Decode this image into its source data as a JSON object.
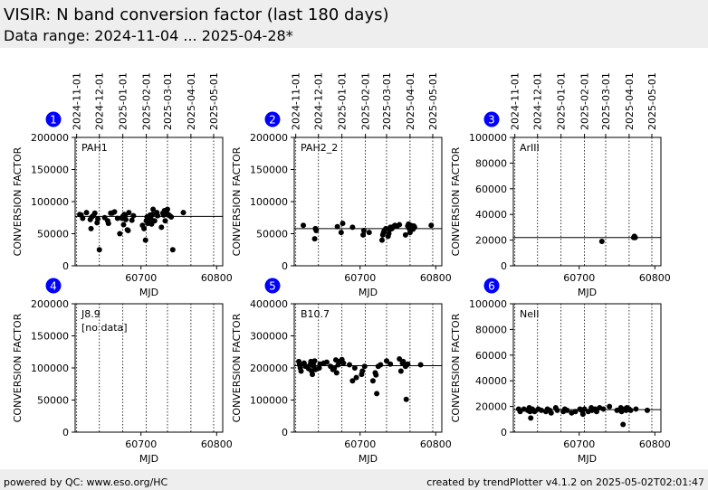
{
  "header": {
    "title": "VISIR: N band conversion factor (last 180 days)",
    "subtitle": "Data range: 2024-11-04 ... 2025-04-28*"
  },
  "footer": {
    "left": "powered by QC: www.eso.org/HC",
    "right": "created by trendPlotter v4.1.2 on 2025-05-02T02:01:47"
  },
  "colors": {
    "marker": "#0000ff",
    "points": "#000000"
  },
  "chart_data": [
    {
      "type": "scatter",
      "panel": "1",
      "label": "PAH1",
      "xlabel": "MJD",
      "ylabel": "CONVERSION FACTOR",
      "xlim": [
        60613,
        60808
      ],
      "ylim": [
        0,
        200000
      ],
      "xticks": [
        60700,
        60800
      ],
      "yticks": [
        0,
        50000,
        100000,
        150000,
        200000
      ],
      "date_ticks": [
        "2024-11-01",
        "2024-12-01",
        "2025-01-01",
        "2025-02-01",
        "2025-03-01",
        "2025-04-01",
        "2025-05-01"
      ],
      "date_mjd": [
        60615,
        60645,
        60676,
        60707,
        60735,
        60766,
        60796
      ],
      "median": 77000,
      "points": [
        [
          60619,
          80000
        ],
        [
          60621,
          79000
        ],
        [
          60623,
          74000
        ],
        [
          60628,
          83000
        ],
        [
          60633,
          72000
        ],
        [
          60635,
          76000
        ],
        [
          60637,
          78000
        ],
        [
          60639,
          82000
        ],
        [
          60642,
          67000
        ],
        [
          60643,
          73000
        ],
        [
          60645,
          25000
        ],
        [
          60634,
          58000
        ],
        [
          60652,
          75000
        ],
        [
          60656,
          70000
        ],
        [
          60657,
          66000
        ],
        [
          60660,
          82000
        ],
        [
          60662,
          82000
        ],
        [
          60665,
          84000
        ],
        [
          60669,
          74000
        ],
        [
          60672,
          50000
        ],
        [
          60675,
          74000
        ],
        [
          60676,
          77000
        ],
        [
          60677,
          64000
        ],
        [
          60678,
          80000
        ],
        [
          60679,
          78000
        ],
        [
          60680,
          72000
        ],
        [
          60682,
          56000
        ],
        [
          60683,
          55000
        ],
        [
          60684,
          83000
        ],
        [
          60688,
          71000
        ],
        [
          60690,
          78000
        ],
        [
          60702,
          63000
        ],
        [
          60704,
          58000
        ],
        [
          60706,
          40000
        ],
        [
          60707,
          70000
        ],
        [
          60708,
          76000
        ],
        [
          60709,
          66000
        ],
        [
          60710,
          73000
        ],
        [
          60711,
          71000
        ],
        [
          60712,
          79000
        ],
        [
          60713,
          74000
        ],
        [
          60714,
          65000
        ],
        [
          60715,
          80000
        ],
        [
          60716,
          88000
        ],
        [
          60718,
          70000
        ],
        [
          60721,
          83000
        ],
        [
          60722,
          78000
        ],
        [
          60727,
          60000
        ],
        [
          60729,
          82000
        ],
        [
          60730,
          79000
        ],
        [
          60731,
          86000
        ],
        [
          60732,
          70000
        ],
        [
          60733,
          84000
        ],
        [
          60735,
          88000
        ],
        [
          60736,
          80000
        ],
        [
          60738,
          78000
        ],
        [
          60740,
          76000
        ],
        [
          60742,
          25000
        ],
        [
          60756,
          83000
        ]
      ]
    },
    {
      "type": "scatter",
      "panel": "2",
      "label": "PAH2_2",
      "xlabel": "MJD",
      "ylabel": "CONVERSION FACTOR",
      "xlim": [
        60613,
        60808
      ],
      "ylim": [
        0,
        200000
      ],
      "xticks": [
        60700,
        60800
      ],
      "yticks": [
        0,
        50000,
        100000,
        150000,
        200000
      ],
      "date_ticks": [
        "2024-11-01",
        "2024-12-01",
        "2025-01-01",
        "2025-02-01",
        "2025-03-01",
        "2025-04-01",
        "2025-05-01"
      ],
      "date_mjd": [
        60615,
        60645,
        60676,
        60707,
        60735,
        60766,
        60796
      ],
      "median": 58000,
      "points": [
        [
          60625,
          63000
        ],
        [
          60640,
          42000
        ],
        [
          60641,
          58000
        ],
        [
          60642,
          55000
        ],
        [
          60670,
          61000
        ],
        [
          60675,
          52000
        ],
        [
          60677,
          66000
        ],
        [
          60690,
          60000
        ],
        [
          60704,
          48000
        ],
        [
          60705,
          55000
        ],
        [
          60712,
          52000
        ],
        [
          60729,
          40000
        ],
        [
          60730,
          48000
        ],
        [
          60731,
          52000
        ],
        [
          60732,
          55000
        ],
        [
          60734,
          58000
        ],
        [
          60737,
          46000
        ],
        [
          60738,
          50000
        ],
        [
          60739,
          56000
        ],
        [
          60740,
          60000
        ],
        [
          60742,
          58000
        ],
        [
          60744,
          61000
        ],
        [
          60746,
          63000
        ],
        [
          60749,
          62000
        ],
        [
          60752,
          64000
        ],
        [
          60760,
          48000
        ],
        [
          60763,
          62000
        ],
        [
          60764,
          65000
        ],
        [
          60765,
          58000
        ],
        [
          60766,
          52000
        ],
        [
          60767,
          63000
        ],
        [
          60768,
          60000
        ],
        [
          60770,
          57000
        ],
        [
          60771,
          62000
        ],
        [
          60772,
          60000
        ],
        [
          60794,
          63000
        ]
      ]
    },
    {
      "type": "scatter",
      "panel": "3",
      "label": "ArIII",
      "xlabel": "MJD",
      "ylabel": "CONVERSION FACTOR",
      "xlim": [
        60613,
        60808
      ],
      "ylim": [
        0,
        100000
      ],
      "xticks": [
        60700,
        60800
      ],
      "yticks": [
        0,
        20000,
        40000,
        60000,
        80000,
        100000
      ],
      "date_ticks": [
        "2024-11-01",
        "2024-12-01",
        "2025-01-01",
        "2025-02-01",
        "2025-03-01",
        "2025-04-01",
        "2025-05-01"
      ],
      "date_mjd": [
        60615,
        60645,
        60676,
        60707,
        60735,
        60766,
        60796
      ],
      "median": 22000,
      "points": [
        [
          60730,
          19000
        ],
        [
          60772,
          22000
        ],
        [
          60773,
          23000
        ],
        [
          60774,
          22000
        ]
      ]
    },
    {
      "type": "scatter",
      "panel": "4",
      "label": "J8.9",
      "note": "[no data]",
      "xlabel": "MJD",
      "ylabel": "CONVERSION FACTOR",
      "xlim": [
        60613,
        60808
      ],
      "ylim": [
        0,
        200000
      ],
      "xticks": [
        60700,
        60800
      ],
      "yticks": [
        0,
        50000,
        100000,
        150000,
        200000
      ],
      "date_mjd": [
        60615,
        60645,
        60676,
        60707,
        60735,
        60766,
        60796
      ],
      "points": []
    },
    {
      "type": "scatter",
      "panel": "5",
      "label": "B10.7",
      "xlabel": "MJD",
      "ylabel": "CONVERSION FACTOR",
      "xlim": [
        60613,
        60808
      ],
      "ylim": [
        0,
        400000
      ],
      "xticks": [
        60700,
        60800
      ],
      "yticks": [
        0,
        100000,
        200000,
        300000,
        400000
      ],
      "date_mjd": [
        60615,
        60645,
        60676,
        60707,
        60735,
        60766,
        60796
      ],
      "median": 207000,
      "points": [
        [
          60619,
          220000
        ],
        [
          60620,
          210000
        ],
        [
          60621,
          200000
        ],
        [
          60622,
          190000
        ],
        [
          60626,
          215000
        ],
        [
          60628,
          205000
        ],
        [
          60632,
          198000
        ],
        [
          60634,
          210000
        ],
        [
          60635,
          220000
        ],
        [
          60636,
          190000
        ],
        [
          60637,
          180000
        ],
        [
          60638,
          215000
        ],
        [
          60639,
          205000
        ],
        [
          60640,
          222000
        ],
        [
          60641,
          195000
        ],
        [
          60646,
          200000
        ],
        [
          60647,
          212000
        ],
        [
          60652,
          215000
        ],
        [
          60656,
          218000
        ],
        [
          60661,
          205000
        ],
        [
          60664,
          195000
        ],
        [
          60666,
          200000
        ],
        [
          60668,
          225000
        ],
        [
          60669,
          185000
        ],
        [
          60671,
          210000
        ],
        [
          60673,
          220000
        ],
        [
          60676,
          226000
        ],
        [
          60678,
          215000
        ],
        [
          60686,
          210000
        ],
        [
          60690,
          160000
        ],
        [
          60693,
          200000
        ],
        [
          60695,
          170000
        ],
        [
          60702,
          180000
        ],
        [
          60703,
          190000
        ],
        [
          60706,
          205000
        ],
        [
          60717,
          160000
        ],
        [
          60720,
          185000
        ],
        [
          60721,
          178000
        ],
        [
          60722,
          120000
        ],
        [
          60724,
          205000
        ],
        [
          60727,
          210000
        ],
        [
          60735,
          222000
        ],
        [
          60740,
          212000
        ],
        [
          60752,
          228000
        ],
        [
          60754,
          190000
        ],
        [
          60756,
          215000
        ],
        [
          60757,
          220000
        ],
        [
          60760,
          205000
        ],
        [
          60761,
          102000
        ],
        [
          60762,
          210000
        ],
        [
          60763,
          212000
        ],
        [
          60780,
          210000
        ]
      ]
    },
    {
      "type": "scatter",
      "panel": "6",
      "label": "NeII",
      "xlabel": "MJD",
      "ylabel": "CONVERSION FACTOR",
      "xlim": [
        60613,
        60808
      ],
      "ylim": [
        0,
        100000
      ],
      "xticks": [
        60700,
        60800
      ],
      "yticks": [
        0,
        20000,
        40000,
        60000,
        80000,
        100000
      ],
      "date_mjd": [
        60615,
        60645,
        60676,
        60707,
        60735,
        60766,
        60796
      ],
      "median": 17500,
      "points": [
        [
          60620,
          18000
        ],
        [
          60622,
          16000
        ],
        [
          60627,
          18000
        ],
        [
          60632,
          17000
        ],
        [
          60634,
          19000
        ],
        [
          60635,
          16000
        ],
        [
          60636,
          11000
        ],
        [
          60638,
          18000
        ],
        [
          60640,
          17000
        ],
        [
          60641,
          16000
        ],
        [
          60646,
          18000
        ],
        [
          60650,
          17000
        ],
        [
          60656,
          16000
        ],
        [
          60658,
          18000
        ],
        [
          60661,
          17000
        ],
        [
          60663,
          15000
        ],
        [
          60669,
          19000
        ],
        [
          60671,
          17000
        ],
        [
          60679,
          16000
        ],
        [
          60681,
          18000
        ],
        [
          60684,
          17000
        ],
        [
          60690,
          15000
        ],
        [
          60695,
          16000
        ],
        [
          60701,
          18000
        ],
        [
          60703,
          17000
        ],
        [
          60705,
          14000
        ],
        [
          60707,
          18000
        ],
        [
          60712,
          16000
        ],
        [
          60716,
          19000
        ],
        [
          60717,
          17000
        ],
        [
          60721,
          18000
        ],
        [
          60723,
          16000
        ],
        [
          60727,
          19000
        ],
        [
          60732,
          18000
        ],
        [
          60740,
          20000
        ],
        [
          60750,
          17000
        ],
        [
          60755,
          19000
        ],
        [
          60756,
          16000
        ],
        [
          60758,
          6000
        ],
        [
          60760,
          18000
        ],
        [
          60762,
          17000
        ],
        [
          60763,
          19000
        ],
        [
          60766,
          18000
        ],
        [
          60768,
          17000
        ],
        [
          60775,
          18000
        ],
        [
          60790,
          17000
        ]
      ]
    }
  ]
}
